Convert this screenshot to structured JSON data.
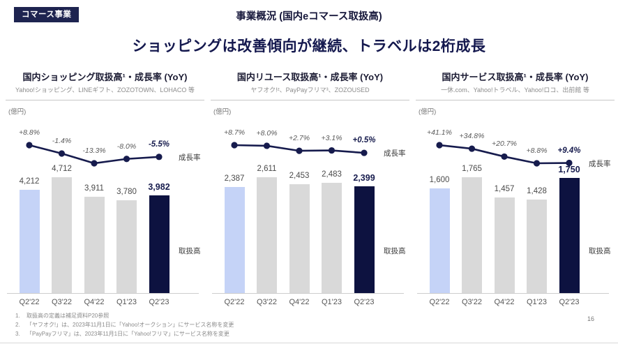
{
  "page": {
    "badge": "コマース事業",
    "header_title": "事業概況 (国内eコマース取扱高)",
    "headline": "ショッピングは改善傾向が継続、トラベルは2桁成長",
    "page_number": "16"
  },
  "colors": {
    "accent_navy": "#161b4d",
    "bar_current": "#0d1240",
    "bar_prior_year": "#c5d3f7",
    "bar_neutral": "#d9d9d9",
    "divider": "#c6c6c6",
    "text_muted": "#8a8a8a"
  },
  "footnotes": [
    {
      "num": "1.",
      "text": "取扱高の定義は補足資料P20参照"
    },
    {
      "num": "2.",
      "text": "「ヤフオク!」は、2023年11月1日に「Yahoo!オークション」にサービス名称を変更"
    },
    {
      "num": "3.",
      "text": "「PayPayフリマ」は、2023年11月1日に「Yahoo!フリマ」にサービス名称を変更"
    }
  ],
  "chart_data": [
    {
      "type": "bar+line",
      "title": "国内ショッピング取扱高¹・成長率 (YoY)",
      "subtitle": "Yahoo!ショッピング、LINEギフト、ZOZOTOWN、LOHACO 等",
      "unit": "(億円)",
      "categories": [
        "Q2'22",
        "Q3'22",
        "Q4'22",
        "Q1'23",
        "Q2'23"
      ],
      "bars": {
        "name": "取扱高",
        "values": [
          4212,
          4712,
          3911,
          3780,
          3982
        ],
        "labels": [
          "4,212",
          "4,712",
          "3,911",
          "3,780",
          "3,982"
        ]
      },
      "line": {
        "name": "成長率",
        "unit": "%",
        "values": [
          8.8,
          -1.4,
          -13.3,
          -8.0,
          -5.5
        ],
        "labels": [
          "+8.8%",
          "-1.4%",
          "-13.3%",
          "-8.0%",
          "-5.5%"
        ]
      }
    },
    {
      "type": "bar+line",
      "title": "国内リユース取扱高¹・成長率 (YoY)",
      "subtitle": "ヤフオク!²、PayPayフリマ³、ZOZOUSED",
      "unit": "(億円)",
      "categories": [
        "Q2'22",
        "Q3'22",
        "Q4'22",
        "Q1'23",
        "Q2'23"
      ],
      "bars": {
        "name": "取扱高",
        "values": [
          2387,
          2611,
          2453,
          2483,
          2399
        ],
        "labels": [
          "2,387",
          "2,611",
          "2,453",
          "2,483",
          "2,399"
        ]
      },
      "line": {
        "name": "成長率",
        "unit": "%",
        "values": [
          8.7,
          8.0,
          2.7,
          3.1,
          0.5
        ],
        "labels": [
          "+8.7%",
          "+8.0%",
          "+2.7%",
          "+3.1%",
          "+0.5%"
        ]
      }
    },
    {
      "type": "bar+line",
      "title": "国内サービス取扱高¹・成長率 (YoY)",
      "subtitle": "一休.com、Yahoo!トラベル、Yahoo!ロコ、出前館 等",
      "unit": "(億円)",
      "categories": [
        "Q2'22",
        "Q3'22",
        "Q4'22",
        "Q1'23",
        "Q2'23"
      ],
      "bars": {
        "name": "取扱高",
        "values": [
          1600,
          1765,
          1457,
          1428,
          1750
        ],
        "labels": [
          "1,600",
          "1,765",
          "1,457",
          "1,428",
          "1,750"
        ]
      },
      "line": {
        "name": "成長率",
        "unit": "%",
        "values": [
          41.1,
          34.8,
          20.7,
          8.8,
          9.4
        ],
        "labels": [
          "+41.1%",
          "+34.8%",
          "+20.7%",
          "+8.8%",
          "+9.4%"
        ]
      }
    }
  ]
}
